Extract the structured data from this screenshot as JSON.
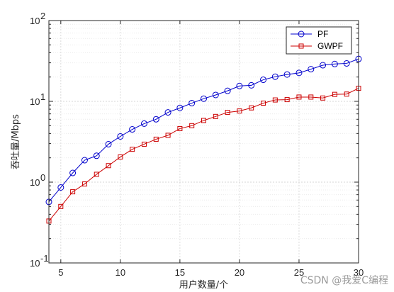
{
  "chart_data": {
    "type": "line",
    "xlabel": "用户数量/个",
    "ylabel": "吞吐量/Mbps",
    "xlim": [
      4,
      30
    ],
    "ylim": [
      0.1,
      100
    ],
    "yscale": "log",
    "grid": true,
    "minor_grid": true,
    "legend_position": "top-right",
    "x_ticks": [
      5,
      10,
      15,
      20,
      25,
      30
    ],
    "x_tick_labels": [
      "5",
      "10",
      "15",
      "20",
      "25",
      "30"
    ],
    "y_ticks": [
      {
        "value": 0.1,
        "base": "10",
        "exp": "-1"
      },
      {
        "value": 1,
        "base": "10",
        "exp": "0"
      },
      {
        "value": 10,
        "base": "10",
        "exp": "1"
      },
      {
        "value": 100,
        "base": "10",
        "exp": "2"
      }
    ],
    "x": [
      4,
      5,
      6,
      7,
      8,
      9,
      10,
      11,
      12,
      13,
      14,
      15,
      16,
      17,
      18,
      19,
      20,
      21,
      22,
      23,
      24,
      25,
      26,
      27,
      28,
      29,
      30
    ],
    "series": [
      {
        "name": "PF",
        "color": "#0000cc",
        "marker": "circle",
        "values": [
          0.57,
          0.86,
          1.3,
          1.87,
          2.12,
          2.95,
          3.68,
          4.5,
          5.3,
          6.0,
          7.3,
          8.3,
          9.5,
          10.8,
          12.0,
          13.5,
          15.5,
          15.8,
          18.5,
          20.2,
          21.5,
          22.5,
          25.0,
          28.0,
          29.0,
          29.5,
          33.5
        ]
      },
      {
        "name": "GWPF",
        "color": "#cc0000",
        "marker": "square",
        "values": [
          0.33,
          0.5,
          0.76,
          0.95,
          1.25,
          1.6,
          2.05,
          2.55,
          2.95,
          3.4,
          3.8,
          4.6,
          5.0,
          5.8,
          6.5,
          7.3,
          7.6,
          8.3,
          9.5,
          10.4,
          10.5,
          11.3,
          11.3,
          11.0,
          12.2,
          12.3,
          14.5
        ]
      }
    ]
  },
  "watermark": "CSDN @我爱C编程"
}
